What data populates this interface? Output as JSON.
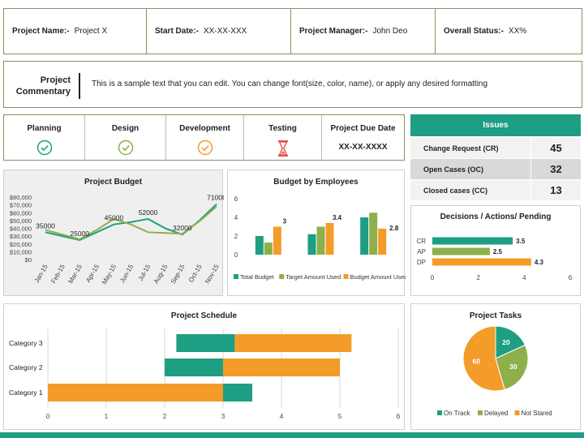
{
  "info": {
    "project_name_label": "Project Name:-",
    "project_name": "Project X",
    "start_date_label": "Start Date:-",
    "start_date": "XX-XX-XXX",
    "manager_label": "Project Manager:-",
    "manager": "John Deo",
    "status_label": "Overall Status:-",
    "status": "XX%"
  },
  "commentary": {
    "title_line1": "Project",
    "title_line2": "Commentary",
    "text": "This is a sample text that you can edit. You can change font(size, color, name), or apply any desired formatting"
  },
  "phases": [
    {
      "name": "Planning",
      "icon": "check-circle-icon",
      "color": "#1e9e82"
    },
    {
      "name": "Design",
      "icon": "check-circle-icon",
      "color": "#8db04a"
    },
    {
      "name": "Development",
      "icon": "check-circle-icon",
      "color": "#f39c2a"
    },
    {
      "name": "Testing",
      "icon": "hourglass-icon",
      "color": "#e0524a"
    }
  ],
  "due": {
    "label": "Project Due Date",
    "value": "XX-XX-XXXX"
  },
  "issues": {
    "title": "Issues",
    "rows": [
      {
        "label": "Change Request (CR)",
        "value": "45"
      },
      {
        "label": "Open Cases (OC)",
        "value": "32"
      },
      {
        "label": "Closed cases (CC)",
        "value": "13"
      }
    ]
  },
  "colors": {
    "teal": "#1e9e82",
    "green": "#8db04a",
    "orange": "#f39c2a",
    "red": "#e0524a"
  },
  "chart_data": [
    {
      "id": "budget",
      "type": "line",
      "title": "Project Budget",
      "categories": [
        "Jan-15",
        "Feb-15",
        "Mar-15",
        "Apr-15",
        "May-15",
        "Jun-15",
        "Jul-15",
        "Aug-15",
        "Sep-15",
        "Oct-15",
        "Nov-15"
      ],
      "yticks": [
        "$80,000",
        "$70,000",
        "$60,000",
        "$50,000",
        "$40,000",
        "$30,000",
        "$20,000",
        "$10,000",
        "$0"
      ],
      "ylim": [
        0,
        80000
      ],
      "series": [
        {
          "color": "#1e9e82",
          "values": [
            35000,
            30000,
            25000,
            35000,
            45000,
            48000,
            52000,
            40000,
            32000,
            50000,
            71000
          ]
        },
        {
          "color": "#8db04a",
          "values": [
            38000,
            32000,
            26000,
            38000,
            52000,
            45000,
            35000,
            34000,
            33000,
            49000,
            68000
          ]
        }
      ],
      "data_labels": [
        {
          "index": 0,
          "text": "35000"
        },
        {
          "index": 2,
          "text": "25000"
        },
        {
          "index": 4,
          "text": "45000"
        },
        {
          "index": 6,
          "text": "52000"
        },
        {
          "index": 8,
          "text": "32000"
        },
        {
          "index": 10,
          "text": "71000"
        }
      ]
    },
    {
      "id": "employees",
      "type": "bar",
      "title": "Budget by Employees",
      "ylim": [
        0,
        6
      ],
      "yticks": [
        "6",
        "4",
        "2",
        "0"
      ],
      "groups": 3,
      "series": [
        {
          "name": "Total Budget",
          "color": "#1e9e82",
          "values": [
            2.0,
            2.2,
            4.0
          ]
        },
        {
          "name": "Target Amount Used",
          "color": "#8db04a",
          "values": [
            1.3,
            3.0,
            4.5
          ]
        },
        {
          "name": "Budget Amount Used",
          "color": "#f39c2a",
          "values": [
            3.0,
            3.4,
            2.8
          ]
        }
      ],
      "data_labels": [
        "3",
        "3.4",
        "2.8"
      ]
    },
    {
      "id": "decisions",
      "type": "bar",
      "orientation": "horizontal",
      "title": "Decisions / Actions/ Pending",
      "categories": [
        "CR",
        "AP",
        "DP"
      ],
      "values": [
        3.5,
        2.5,
        4.3
      ],
      "colors": [
        "#1e9e82",
        "#8db04a",
        "#f39c2a"
      ],
      "data_labels": [
        "3.5",
        "2.5",
        "4.3"
      ],
      "xticks": [
        "0",
        "2",
        "4",
        "6"
      ],
      "xlim": [
        0,
        6
      ]
    },
    {
      "id": "schedule",
      "type": "bar",
      "orientation": "horizontal-stacked",
      "title": "Project Schedule",
      "categories": [
        "Category 3",
        "Category 2",
        "Category 1"
      ],
      "xticks": [
        "0",
        "1",
        "2",
        "3",
        "4",
        "5",
        "6"
      ],
      "xlim": [
        0,
        6
      ],
      "tasks": [
        [
          {
            "start": 2.2,
            "end": 3.2,
            "color": "#1e9e82"
          },
          {
            "start": 3.2,
            "end": 5.2,
            "color": "#f39c2a"
          }
        ],
        [
          {
            "start": 2.0,
            "end": 3.0,
            "color": "#1e9e82"
          },
          {
            "start": 3.0,
            "end": 5.0,
            "color": "#f39c2a"
          }
        ],
        [
          {
            "start": 0.0,
            "end": 3.0,
            "color": "#f39c2a"
          },
          {
            "start": 3.0,
            "end": 3.5,
            "color": "#1e9e82"
          }
        ]
      ]
    },
    {
      "id": "tasks",
      "type": "pie",
      "title": "Project Tasks",
      "slices": [
        {
          "name": "On Track",
          "value": 20,
          "color": "#1e9e82"
        },
        {
          "name": "Delayed",
          "value": 30,
          "color": "#8db04a"
        },
        {
          "name": "Not Stared",
          "value": 60,
          "color": "#f39c2a"
        }
      ]
    }
  ]
}
